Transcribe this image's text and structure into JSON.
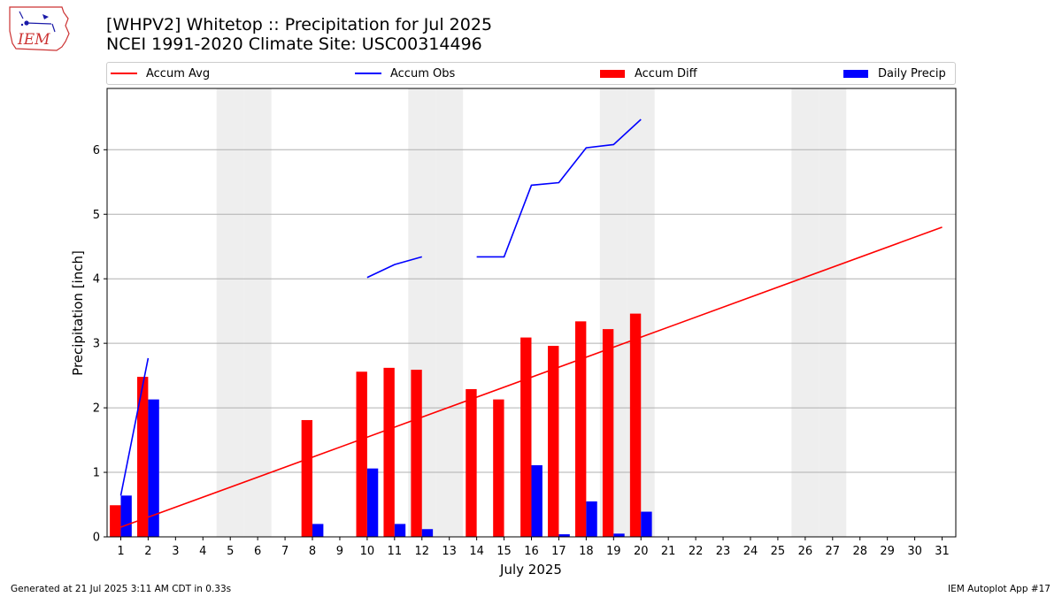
{
  "logo": {
    "text": "IEM"
  },
  "title": {
    "line1": "[WHPV2] Whitetop :: Precipitation for Jul 2025",
    "line2": "NCEI 1991-2020 Climate Site: USC00314496"
  },
  "legend": {
    "items": [
      {
        "label": "Accum Avg",
        "kind": "line",
        "color": "#ff0000"
      },
      {
        "label": "Accum Obs",
        "kind": "line",
        "color": "#0000ff"
      },
      {
        "label": "Accum Diff",
        "kind": "patch",
        "color": "#ff0000"
      },
      {
        "label": "Daily Precip",
        "kind": "patch",
        "color": "#0000ff"
      }
    ]
  },
  "footer": {
    "left": "Generated at 21 Jul 2025 3:11 AM CDT in 0.33s",
    "right": "IEM Autoplot App #17"
  },
  "chart_data": {
    "type": "bar",
    "xlabel": "July 2025",
    "ylabel": "Precipitation [inch]",
    "ylim": [
      0,
      6.95
    ],
    "xlim": [
      0.5,
      31.5
    ],
    "yticks": [
      0,
      1,
      2,
      3,
      4,
      5,
      6
    ],
    "xticks": [
      1,
      2,
      3,
      4,
      5,
      6,
      7,
      8,
      9,
      10,
      11,
      12,
      13,
      14,
      15,
      16,
      17,
      18,
      19,
      20,
      21,
      22,
      23,
      24,
      25,
      26,
      27,
      28,
      29,
      30,
      31
    ],
    "weekend_days": [
      5,
      6,
      12,
      13,
      19,
      20,
      26,
      27
    ],
    "grid": "y",
    "legend_position": "top",
    "colors": {
      "avg": "#ff0000",
      "obs": "#0000ff",
      "diff": "#ff0000",
      "daily": "#0000ff",
      "weekend": "#eeeeee",
      "grid": "#b0b0b0"
    },
    "series": [
      {
        "name": "Accum Avg",
        "kind": "line",
        "x": [
          1,
          31
        ],
        "values": [
          0.15,
          4.8
        ]
      },
      {
        "name": "Accum Obs",
        "kind": "line",
        "segments": [
          {
            "x": [
              1,
              2
            ],
            "values": [
              0.64,
              2.77
            ]
          },
          {
            "x": [
              10,
              11,
              12
            ],
            "values": [
              4.02,
              4.22,
              4.34
            ]
          },
          {
            "x": [
              14,
              15,
              16,
              17,
              18,
              19,
              20
            ],
            "values": [
              4.34,
              4.34,
              5.45,
              5.49,
              6.03,
              6.08,
              6.47
            ]
          }
        ]
      },
      {
        "name": "Accum Diff",
        "kind": "bar",
        "x": [
          1,
          2,
          8,
          10,
          11,
          12,
          14,
          15,
          16,
          17,
          18,
          19,
          20
        ],
        "values": [
          0.49,
          2.48,
          1.81,
          2.56,
          2.62,
          2.59,
          2.29,
          2.13,
          3.09,
          2.96,
          3.34,
          3.22,
          3.46
        ]
      },
      {
        "name": "Daily Precip",
        "kind": "bar",
        "x": [
          1,
          2,
          8,
          10,
          11,
          12,
          16,
          17,
          18,
          19,
          20
        ],
        "values": [
          0.64,
          2.13,
          0.2,
          1.06,
          0.2,
          0.12,
          1.11,
          0.04,
          0.55,
          0.05,
          0.39
        ]
      }
    ]
  }
}
